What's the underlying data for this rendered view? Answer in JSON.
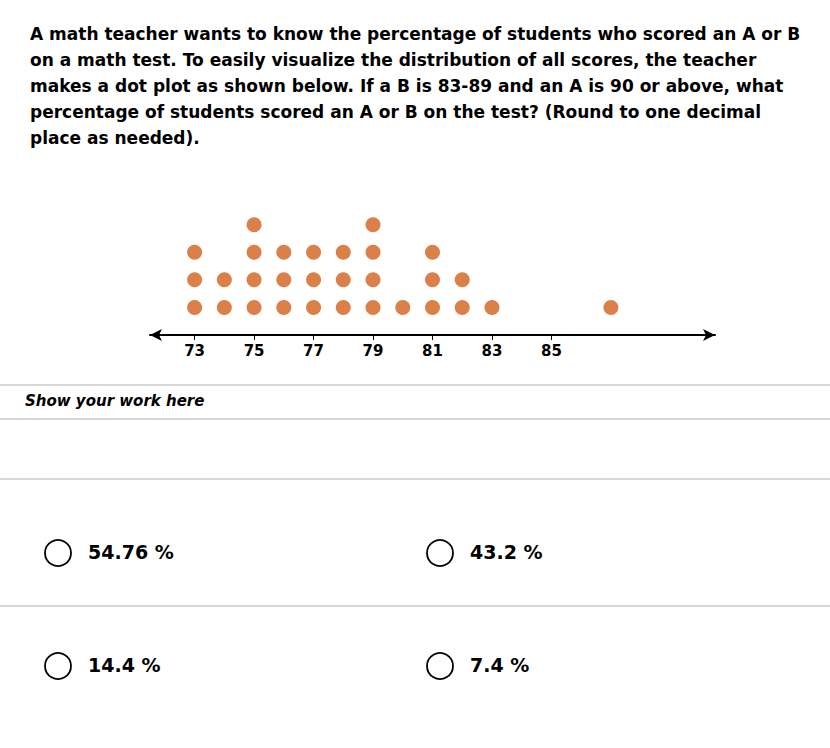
{
  "chart_data": {
    "type": "dot_plot",
    "title": "A math teacher wants to know the percentage of students who scored an A or B on a math test. To easily visualize the distribution of all scores, the teacher makes a dot plot as shown below. If a B is 83-89 and an A is 90 or above, what percentage of students scored an A or B on the test? (Round to one decimal place as needed).",
    "x": [
      73,
      74,
      75,
      76,
      77,
      78,
      79,
      80,
      81,
      82,
      83,
      87
    ],
    "values": [
      3,
      2,
      4,
      3,
      3,
      3,
      4,
      1,
      3,
      2,
      1,
      1
    ],
    "color": "#D2601A",
    "xlim": [
      71.5,
      90.5
    ],
    "xticks": [
      73,
      75,
      77,
      79,
      81,
      83,
      85
    ],
    "ylim": [
      0,
      5.8
    ],
    "grid": false,
    "tick_labels": "x",
    "annotations": [
      "Show your work here",
      "54.76 %",
      "43.2 %",
      "14.4 %",
      "7.4 %"
    ]
  }
}
